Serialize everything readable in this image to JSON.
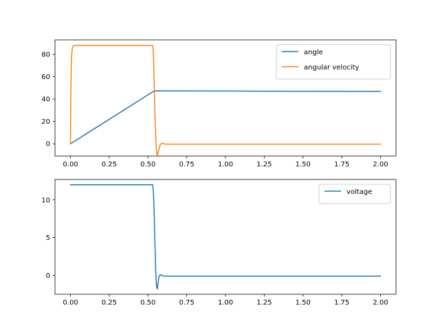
{
  "chart_data": [
    {
      "type": "line",
      "title": "",
      "xlabel": "",
      "ylabel": "",
      "xlim": [
        -0.1,
        2.1
      ],
      "ylim": [
        -11,
        93
      ],
      "xticks": [
        0.0,
        0.25,
        0.5,
        0.75,
        1.0,
        1.25,
        1.5,
        1.75,
        2.0
      ],
      "xtick_labels": [
        "0.00",
        "0.25",
        "0.50",
        "0.75",
        "1.00",
        "1.25",
        "1.50",
        "1.75",
        "2.00"
      ],
      "yticks": [
        0,
        20,
        40,
        60,
        80
      ],
      "ytick_labels": [
        "0",
        "20",
        "40",
        "60",
        "80"
      ],
      "grid": false,
      "legend": "top-right",
      "series": [
        {
          "name": "angle",
          "color": "#1f77b4",
          "x": [
            0.0,
            0.54,
            0.56,
            0.6,
            1.0,
            1.5,
            2.0
          ],
          "y": [
            0.0,
            47.3,
            47.4,
            47.3,
            47.2,
            47.0,
            46.9
          ]
        },
        {
          "name": "angular velocity",
          "color": "#ff7f0e",
          "x": [
            0.0,
            0.002,
            0.005,
            0.01,
            0.015,
            0.02,
            0.03,
            0.05,
            0.53,
            0.535,
            0.54,
            0.545,
            0.55,
            0.555,
            0.56,
            0.57,
            0.58,
            0.59,
            0.6,
            0.62,
            0.65,
            1.0,
            1.5,
            2.0
          ],
          "y": [
            0.0,
            45.0,
            72.0,
            84.0,
            87.0,
            87.8,
            88.0,
            88.0,
            88.0,
            80.0,
            55.0,
            25.0,
            5.0,
            -7.0,
            -10.5,
            -5.0,
            -0.5,
            0.5,
            0.0,
            -0.4,
            -0.3,
            -0.3,
            -0.3,
            -0.3
          ]
        }
      ]
    },
    {
      "type": "line",
      "title": "",
      "xlabel": "",
      "ylabel": "",
      "xlim": [
        -0.1,
        2.1
      ],
      "ylim": [
        -2.5,
        12.7
      ],
      "xticks": [
        0.0,
        0.25,
        0.5,
        0.75,
        1.0,
        1.25,
        1.5,
        1.75,
        2.0
      ],
      "xtick_labels": [
        "0.00",
        "0.25",
        "0.50",
        "0.75",
        "1.00",
        "1.25",
        "1.50",
        "1.75",
        "2.00"
      ],
      "yticks": [
        0,
        5,
        10
      ],
      "ytick_labels": [
        "0",
        "5",
        "10"
      ],
      "grid": false,
      "legend": "top-right",
      "series": [
        {
          "name": "voltage",
          "color": "#1f77b4",
          "x": [
            0.0,
            0.53,
            0.535,
            0.54,
            0.545,
            0.55,
            0.555,
            0.56,
            0.565,
            0.57,
            0.58,
            0.59,
            0.6,
            0.65,
            1.0,
            1.5,
            2.0
          ],
          "y": [
            12.0,
            12.0,
            11.0,
            8.0,
            4.0,
            0.5,
            -1.5,
            -1.8,
            -1.0,
            -0.2,
            0.1,
            0.0,
            -0.1,
            -0.1,
            -0.1,
            -0.1,
            -0.1
          ]
        }
      ]
    }
  ]
}
